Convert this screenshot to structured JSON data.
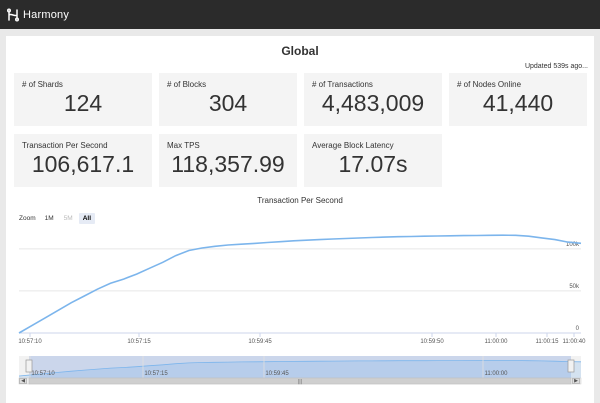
{
  "app": {
    "name": "Harmony",
    "logo_icon": "harmony-logo-icon"
  },
  "page": {
    "title": "Global",
    "updated": "Updated 539s ago..."
  },
  "stats": [
    {
      "label": "# of Shards",
      "value": "124"
    },
    {
      "label": "# of Blocks",
      "value": "304"
    },
    {
      "label": "# of Transactions",
      "value": "4,483,009"
    },
    {
      "label": "# of Nodes Online",
      "value": "41,440"
    },
    {
      "label": "Transaction Per Second",
      "value": "106,617.1"
    },
    {
      "label": "Max TPS",
      "value": "118,357.99"
    },
    {
      "label": "Average Block Latency",
      "value": "17.07s"
    }
  ],
  "zoom": {
    "label": "Zoom",
    "buttons": [
      {
        "label": "1M",
        "state": "normal"
      },
      {
        "label": "5M",
        "state": "disabled"
      },
      {
        "label": "All",
        "state": "active"
      }
    ]
  },
  "chart_data": {
    "type": "line",
    "title": "Transaction Per Second",
    "xlabel": "",
    "ylabel": "",
    "x_ticks": [
      "10:57:10",
      "10:57:15",
      "10:59:45",
      "10:59:50",
      "11:00:00",
      "11:00:15",
      "11:00:40"
    ],
    "y_ticks": [
      "0",
      "50k",
      "100k"
    ],
    "ylim": [
      0,
      120000
    ],
    "series": [
      {
        "color": "#7cb5ec",
        "values": [
          0,
          9000,
          18000,
          27000,
          36000,
          44000,
          52000,
          59000,
          64000,
          70000,
          77000,
          84000,
          92000,
          98000,
          101000,
          103000,
          104500,
          105500,
          106500,
          107500,
          108500,
          109500,
          110300,
          111000,
          111700,
          112300,
          112900,
          113500,
          114000,
          114400,
          114700,
          115000,
          115300,
          115500,
          115700,
          115900,
          116100,
          116200,
          116100,
          115000,
          113000,
          111000,
          108000,
          106600
        ]
      }
    ],
    "navigator_ticks": [
      "10:57:10",
      "10:57:15",
      "10:59:45",
      "11:00:00"
    ],
    "grid": true,
    "legend": "none"
  },
  "colors": {
    "topbar": "#2b2b2b",
    "series": "#7cb5ec",
    "navigator_mask": "#c7d3ea"
  }
}
